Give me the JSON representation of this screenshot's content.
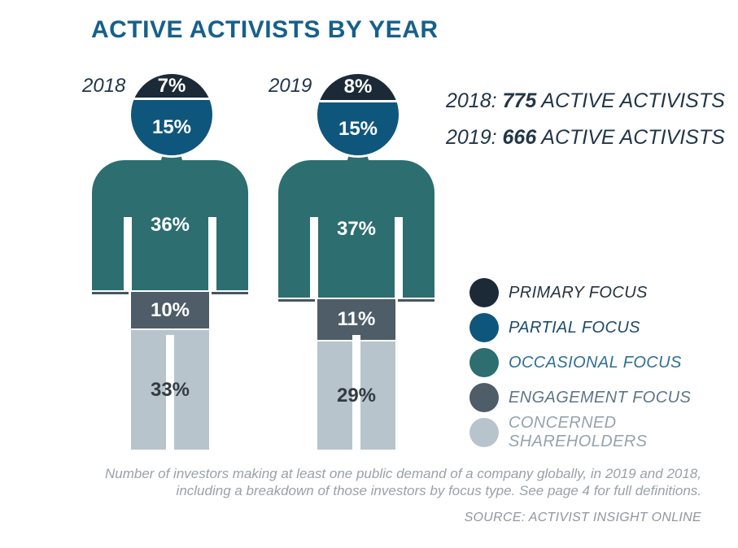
{
  "title": "ACTIVE ACTIVISTS BY YEAR",
  "colors": {
    "title": "#16608c",
    "text_dark": "#223649",
    "primary": "#1b2a36",
    "partial": "#0f567d",
    "occasional": "#2d6e70",
    "engagement": "#4e5d68",
    "concerned": "#b7c4cc",
    "pct_dark": "#333b41",
    "cuff": "#475560",
    "caption_gray": "#9aa1a8",
    "source_gray": "#8f979e"
  },
  "figures": [
    {
      "year": "2018",
      "segments": {
        "primary": {
          "label": "7%",
          "value": 7
        },
        "partial": {
          "label": "15%",
          "value": 15
        },
        "occasional": {
          "label": "36%",
          "value": 36
        },
        "engagement": {
          "label": "10%",
          "value": 10
        },
        "concerned": {
          "label": "33%",
          "value": 33
        }
      }
    },
    {
      "year": "2019",
      "segments": {
        "primary": {
          "label": "8%",
          "value": 8
        },
        "partial": {
          "label": "15%",
          "value": 15
        },
        "occasional": {
          "label": "37%",
          "value": 37
        },
        "engagement": {
          "label": "11%",
          "value": 11
        },
        "concerned": {
          "label": "29%",
          "value": 29
        }
      }
    }
  ],
  "stats": [
    {
      "prefix": "2018:",
      "number": "775",
      "suffix": "ACTIVE ACTIVISTS"
    },
    {
      "prefix": "2019:",
      "number": "666",
      "suffix": "ACTIVE ACTIVISTS"
    }
  ],
  "legend": [
    {
      "label": "PRIMARY FOCUS",
      "color": "#1b2a36",
      "text_color": "#243341"
    },
    {
      "label": "PARTIAL FOCUS",
      "color": "#0f567d",
      "text_color": "#1d4a6e"
    },
    {
      "label": "OCCASIONAL FOCUS",
      "color": "#2d6e70",
      "text_color": "#2f6f93"
    },
    {
      "label": "ENGAGEMENT FOCUS",
      "color": "#4e5d68",
      "text_color": "#5f7585"
    },
    {
      "label": "CONCERNED SHAREHOLDERS",
      "color": "#b7c4cc",
      "text_color": "#95a3ae"
    }
  ],
  "caption": {
    "line1": "Number of investors making at least one public demand of a company globally, in 2019 and 2018,",
    "line2": "including a breakdown of those investors by focus type. See page 4 for full definitions."
  },
  "source": "SOURCE: ACTIVIST INSIGHT ONLINE",
  "chart_data": {
    "type": "bar",
    "subtype": "100%-stacked-pictogram",
    "title": "ACTIVE ACTIVISTS BY YEAR",
    "categories": [
      "2018",
      "2019"
    ],
    "series": [
      {
        "name": "PRIMARY FOCUS",
        "values": [
          7,
          8
        ]
      },
      {
        "name": "PARTIAL FOCUS",
        "values": [
          15,
          15
        ]
      },
      {
        "name": "OCCASIONAL FOCUS",
        "values": [
          36,
          37
        ]
      },
      {
        "name": "ENGAGEMENT FOCUS",
        "values": [
          10,
          11
        ]
      },
      {
        "name": "CONCERNED SHAREHOLDERS",
        "values": [
          33,
          29
        ]
      }
    ],
    "unit": "%",
    "totals": [
      {
        "year": "2018",
        "active_activists": 775
      },
      {
        "year": "2019",
        "active_activists": 666
      }
    ],
    "legend_position": "right",
    "grid": false
  }
}
